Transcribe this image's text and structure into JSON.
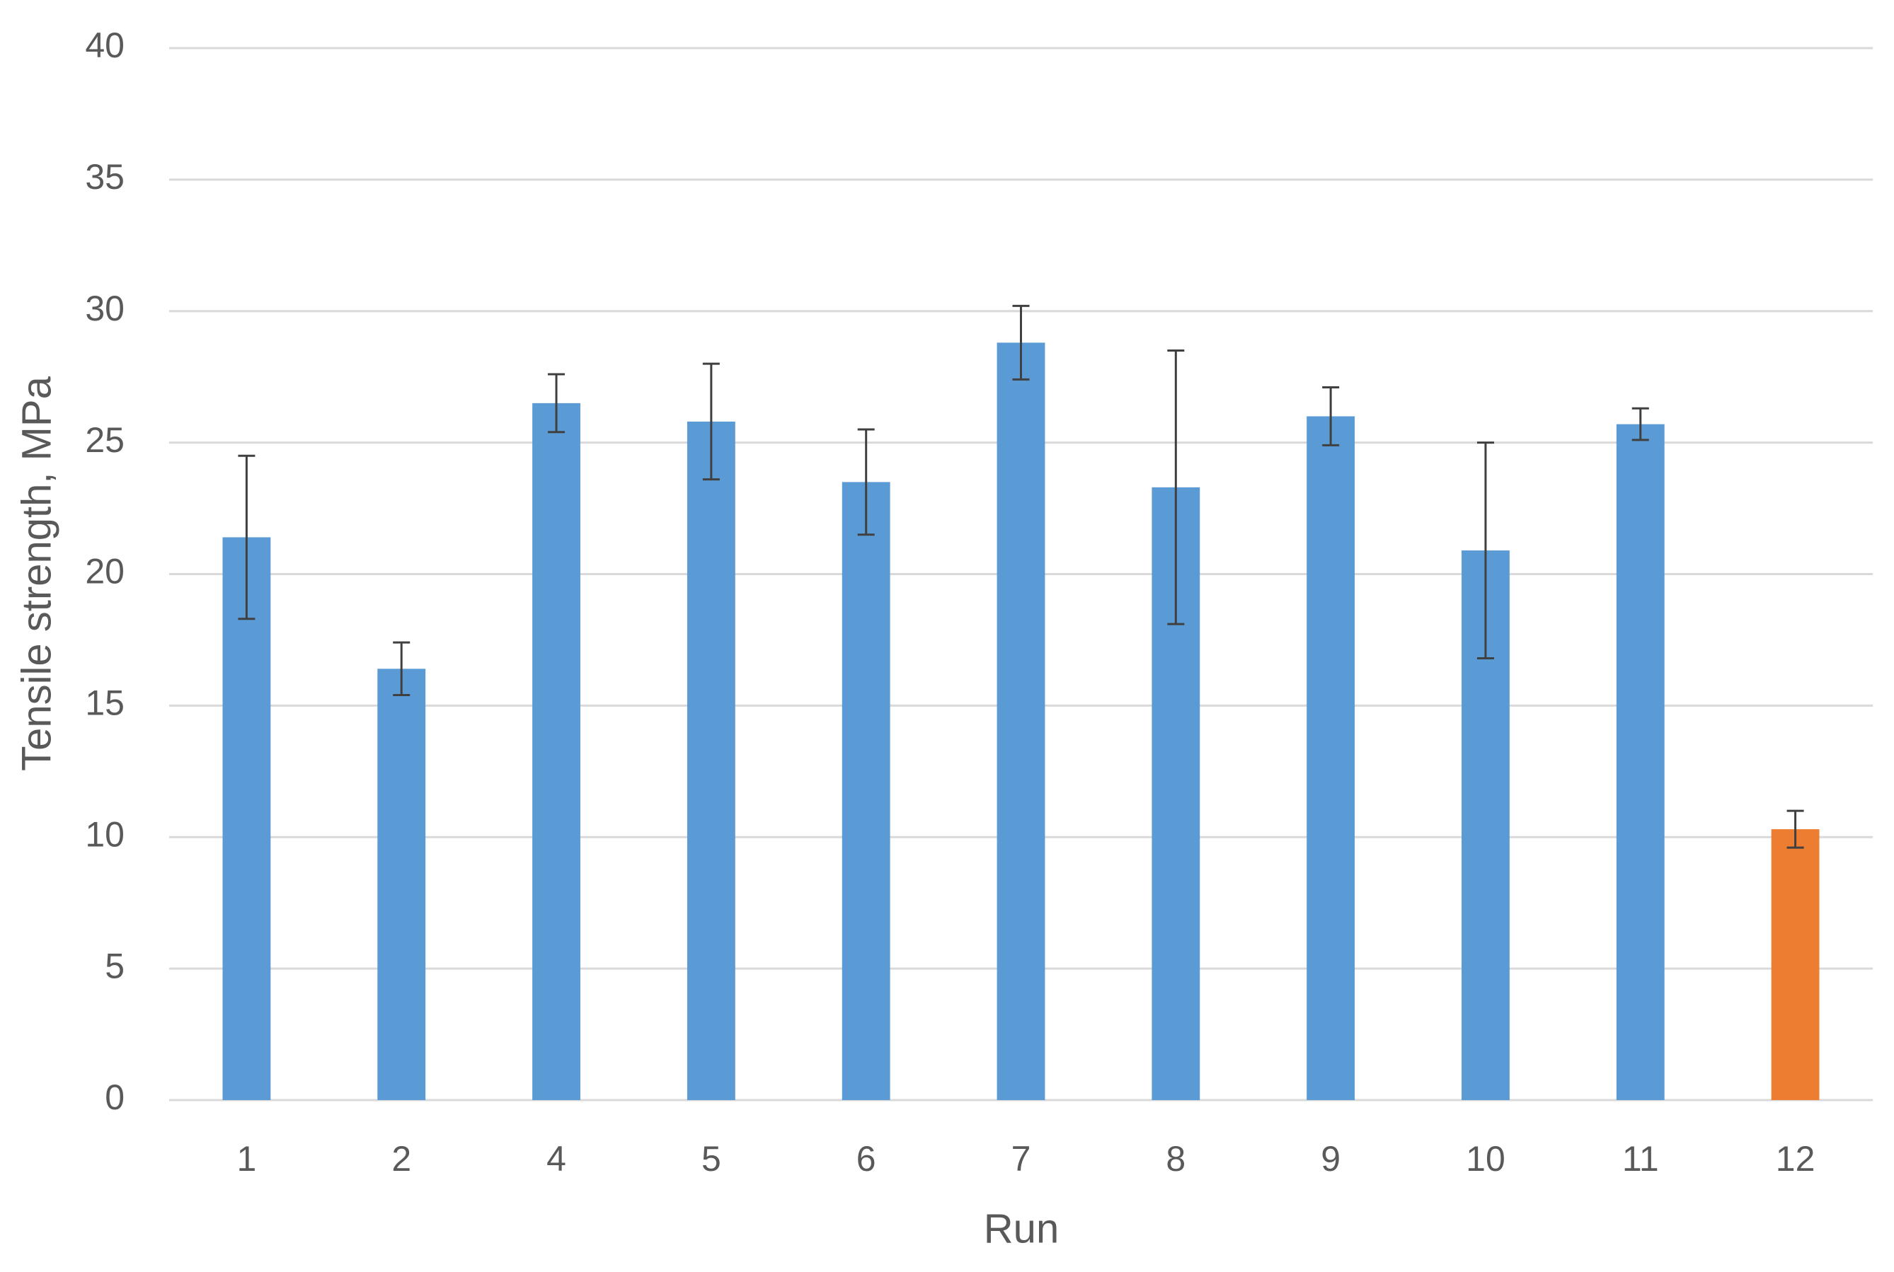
{
  "chart_data": {
    "type": "bar",
    "x_label": "Run",
    "y_label": "Tensile strength, MPa",
    "categories": [
      "1",
      "2",
      "4",
      "5",
      "6",
      "7",
      "8",
      "9",
      "10",
      "11",
      "12"
    ],
    "values": [
      21.4,
      16.4,
      26.5,
      25.8,
      23.5,
      28.8,
      23.3,
      26.0,
      20.9,
      25.7,
      10.3
    ],
    "errors": [
      3.1,
      1.0,
      1.1,
      2.2,
      2.0,
      1.4,
      5.2,
      1.1,
      4.1,
      0.6,
      0.7
    ],
    "colors": [
      "#5b9bd5",
      "#5b9bd5",
      "#5b9bd5",
      "#5b9bd5",
      "#5b9bd5",
      "#5b9bd5",
      "#5b9bd5",
      "#5b9bd5",
      "#5b9bd5",
      "#5b9bd5",
      "#ed7d31"
    ],
    "error_color": "#404040",
    "ylim": [
      0,
      40
    ],
    "yticks": [
      0,
      5,
      10,
      15,
      20,
      25,
      30,
      35,
      40
    ],
    "grid": true
  }
}
